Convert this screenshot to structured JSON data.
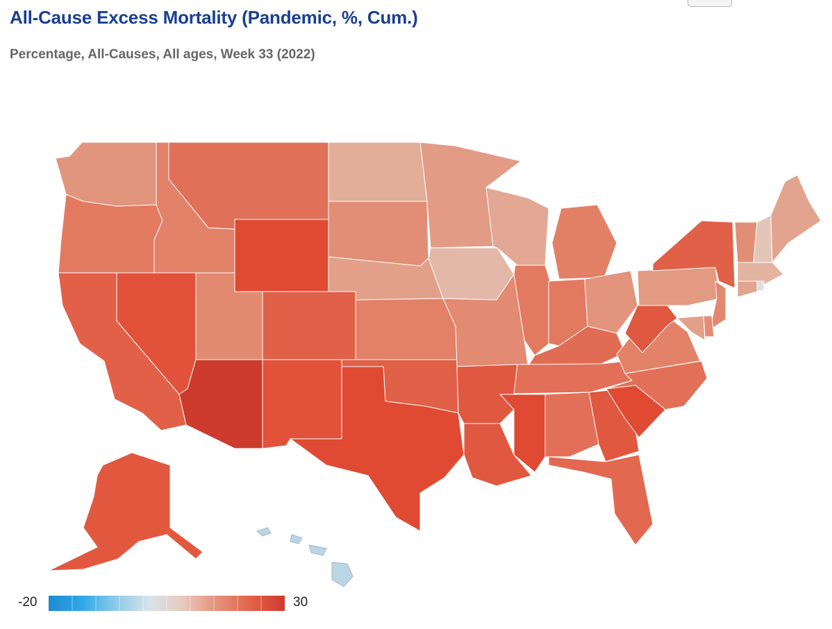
{
  "header": {
    "title": "All-Cause Excess Mortality (Pandemic, %, Cum.)",
    "subtitle": "Percentage, All-Causes, All ages, Week 33 (2022)"
  },
  "legend": {
    "min_label": "-20",
    "max_label": "30",
    "min_value": -20,
    "max_value": 30,
    "color_stops": [
      "#1f8ad0",
      "#2ea9e8",
      "#8fcbe8",
      "#d8e3ea",
      "#e9c8bc",
      "#e4917a",
      "#e2624a",
      "#cf3a2c"
    ]
  },
  "colors": {
    "hawaii": "#bcd5e3",
    "border": "#ffffff"
  },
  "map": {
    "metric": "All-cause excess mortality, % cumulative",
    "states": [
      {
        "code": "WA",
        "color": "#e2957d"
      },
      {
        "code": "OR",
        "color": "#e27a60"
      },
      {
        "code": "CA",
        "color": "#e26048"
      },
      {
        "code": "NV",
        "color": "#e2523a"
      },
      {
        "code": "ID",
        "color": "#e28268"
      },
      {
        "code": "MT",
        "color": "#e07058"
      },
      {
        "code": "WY",
        "color": "#e04a33"
      },
      {
        "code": "UT",
        "color": "#e28a70"
      },
      {
        "code": "AZ",
        "color": "#cc3b2b"
      },
      {
        "code": "CO",
        "color": "#e06048"
      },
      {
        "code": "NM",
        "color": "#e2523a"
      },
      {
        "code": "ND",
        "color": "#e2ae98"
      },
      {
        "code": "SD",
        "color": "#e28e76"
      },
      {
        "code": "NE",
        "color": "#e2a08a"
      },
      {
        "code": "KS",
        "color": "#e28068"
      },
      {
        "code": "OK",
        "color": "#e06048"
      },
      {
        "code": "TX",
        "color": "#e04a33"
      },
      {
        "code": "MN",
        "color": "#e29c86"
      },
      {
        "code": "IA",
        "color": "#e3b8a8"
      },
      {
        "code": "MO",
        "color": "#e28a72"
      },
      {
        "code": "AR",
        "color": "#e05840"
      },
      {
        "code": "LA",
        "color": "#e05840"
      },
      {
        "code": "WI",
        "color": "#e2a894"
      },
      {
        "code": "IL",
        "color": "#e27a60"
      },
      {
        "code": "MI",
        "color": "#e28066"
      },
      {
        "code": "IN",
        "color": "#e27a60"
      },
      {
        "code": "OH",
        "color": "#e2947c"
      },
      {
        "code": "KY",
        "color": "#e06c54"
      },
      {
        "code": "TN",
        "color": "#e27058"
      },
      {
        "code": "MS",
        "color": "#e04a33"
      },
      {
        "code": "AL",
        "color": "#e27058"
      },
      {
        "code": "GA",
        "color": "#e05840"
      },
      {
        "code": "FL",
        "color": "#e26850"
      },
      {
        "code": "SC",
        "color": "#e04a33"
      },
      {
        "code": "NC",
        "color": "#e27058"
      },
      {
        "code": "VA",
        "color": "#e28268"
      },
      {
        "code": "WV",
        "color": "#e05840"
      },
      {
        "code": "PA",
        "color": "#e29a82"
      },
      {
        "code": "NY",
        "color": "#e06048"
      },
      {
        "code": "NJ",
        "color": "#e28870"
      },
      {
        "code": "DE",
        "color": "#e28e76"
      },
      {
        "code": "MD",
        "color": "#e2a08a"
      },
      {
        "code": "VT",
        "color": "#e28e76"
      },
      {
        "code": "NH",
        "color": "#e3c6b8"
      },
      {
        "code": "ME",
        "color": "#e2a48e"
      },
      {
        "code": "MA",
        "color": "#e3b4a2"
      },
      {
        "code": "CT",
        "color": "#e2a48e"
      },
      {
        "code": "RI",
        "color": "#dde0e2"
      },
      {
        "code": "AK",
        "color": "#e2583f"
      },
      {
        "code": "HI",
        "color": "#bcd5e3"
      }
    ]
  }
}
